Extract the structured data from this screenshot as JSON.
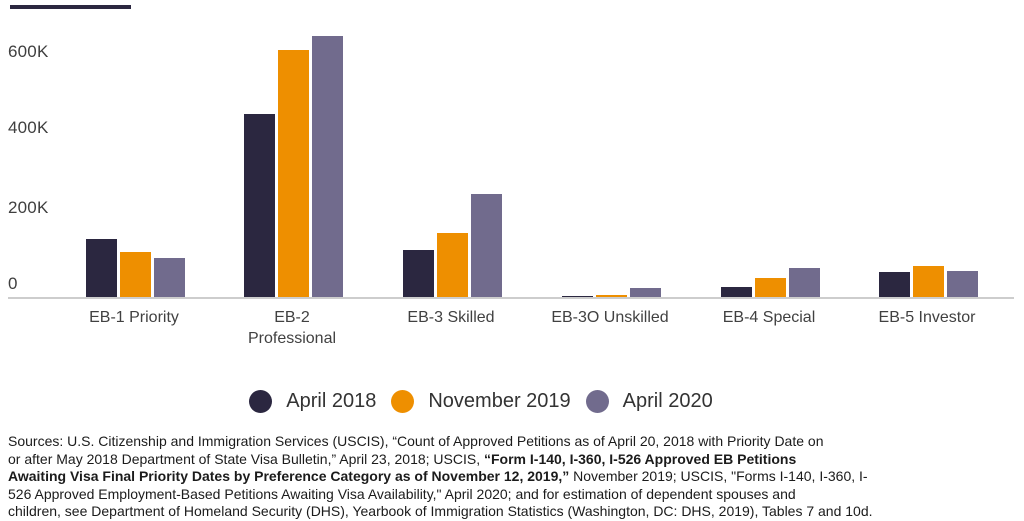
{
  "chart_data": {
    "type": "bar",
    "title": "",
    "categories": [
      "EB-1 Priority",
      "EB-2\nProfessional",
      "EB-3 Skilled",
      "EB-3O Unskilled",
      "EB-4 Special",
      "EB-5 Investor"
    ],
    "series": [
      {
        "name": "April 2018",
        "color": "#2b2740",
        "values": [
          140000,
          445000,
          115000,
          3000,
          25000,
          60000
        ]
      },
      {
        "name": "November 2019",
        "color": "#ee8f00",
        "values": [
          110000,
          600000,
          155000,
          6000,
          45000,
          75000
        ]
      },
      {
        "name": "April 2020",
        "color": "#716b8d",
        "values": [
          95000,
          635000,
          250000,
          22000,
          70000,
          62000
        ]
      }
    ],
    "xlabel": "",
    "ylabel": "",
    "yticks": [
      "600K",
      "400K",
      "200K",
      "0"
    ],
    "ylim": [
      0,
      650000
    ],
    "grid": false,
    "legend_position": "bottom"
  },
  "sources": {
    "line1": "Sources: U.S. Citizenship and Immigration Services (USCIS), “Count of Approved Petitions as of April 20, 2018 with Priority Date on",
    "line2_pre": "or after May 2018 Department of State Visa Bulletin,” April 23, 2018; USCIS, ",
    "line2_bold": "“Form I-140, I-360, I-526 Approved EB Petitions",
    "line3_bold": "Awaiting Visa Final Priority Dates by Preference Category as of November 12, 2019,”",
    "line3_post": " November 2019; USCIS, \"Forms I-140, I-360, I-",
    "line4": "526 Approved Employment-Based Petitions Awaiting Visa Availability,\" April 2020; and for estimation of dependent spouses and",
    "line5": "children, see Department of Homeland Security (DHS), Yearbook of Immigration Statistics (Washington, DC: DHS, 2019), Tables 7 and 10d."
  }
}
